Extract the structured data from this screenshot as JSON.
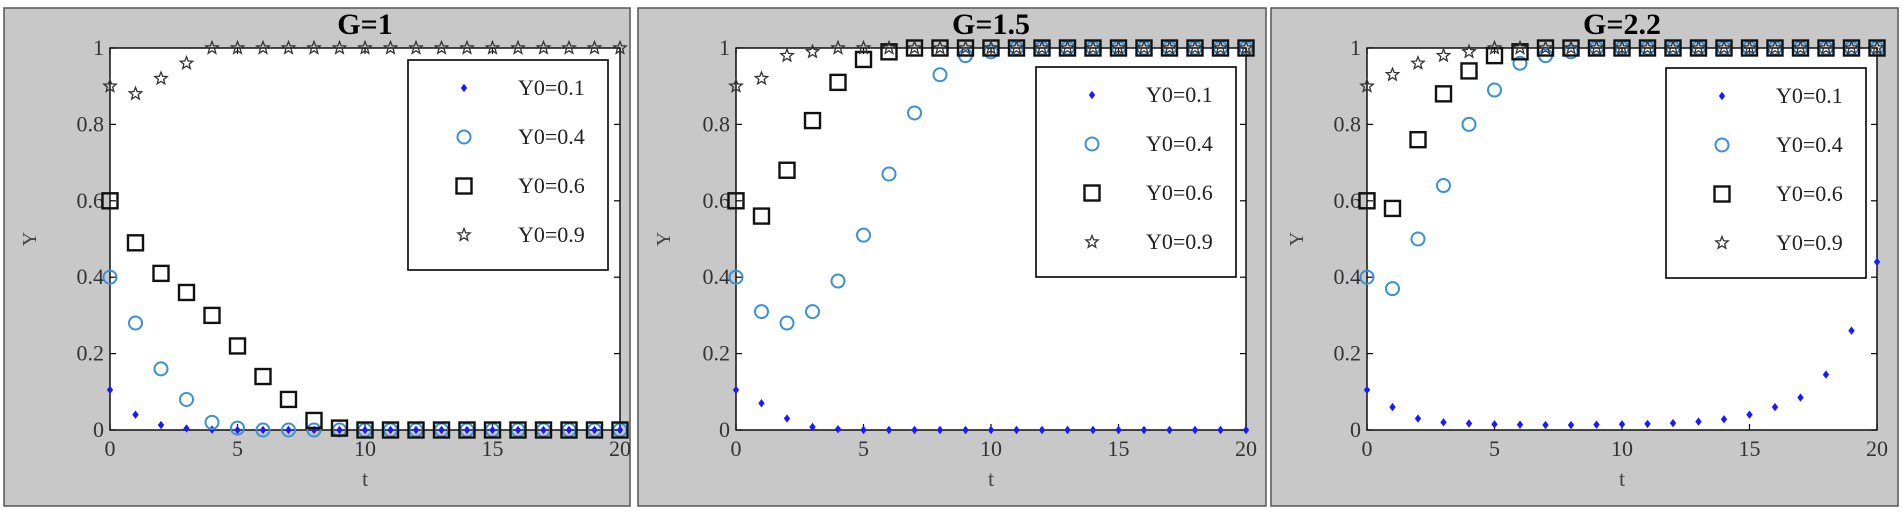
{
  "chart_data": [
    {
      "type": "scatter",
      "title": "G=1",
      "xlabel": "t",
      "ylabel": "Y",
      "xlim": [
        0,
        20
      ],
      "ylim": [
        0,
        1
      ],
      "xticks": [
        "0",
        "5",
        "10",
        "15",
        "20"
      ],
      "yticks": [
        "0",
        "0.2",
        "0.4",
        "0.6",
        "0.8",
        "1"
      ],
      "grid": false,
      "legend_position": "top-right",
      "x": [
        0,
        1,
        2,
        3,
        4,
        5,
        6,
        7,
        8,
        9,
        10,
        11,
        12,
        13,
        14,
        15,
        16,
        17,
        18,
        19,
        20
      ],
      "series": [
        {
          "name": "Y0=0.1",
          "marker": "dot",
          "color": "#1a1aff",
          "values": [
            0.105,
            0.04,
            0.013,
            0.004,
            0.001,
            0,
            0,
            0,
            0,
            0,
            0,
            0,
            0,
            0,
            0,
            0,
            0,
            0,
            0,
            0,
            0
          ]
        },
        {
          "name": "Y0=0.4",
          "marker": "circle",
          "color": "#3a8fd6",
          "values": [
            0.4,
            0.28,
            0.16,
            0.08,
            0.02,
            0.005,
            0,
            0,
            0,
            0,
            0,
            0,
            0,
            0,
            0,
            0,
            0,
            0,
            0,
            0,
            0
          ]
        },
        {
          "name": "Y0=0.6",
          "marker": "square",
          "color": "#111111",
          "values": [
            0.6,
            0.49,
            0.41,
            0.36,
            0.3,
            0.22,
            0.14,
            0.08,
            0.025,
            0.005,
            0,
            0,
            0,
            0,
            0,
            0,
            0,
            0,
            0,
            0,
            0
          ]
        },
        {
          "name": "Y0=0.9",
          "marker": "star",
          "color": "#333333",
          "values": [
            0.9,
            0.88,
            0.92,
            0.96,
            1,
            1,
            1,
            1,
            1,
            1,
            1,
            1,
            1,
            1,
            1,
            1,
            1,
            1,
            1,
            1,
            1
          ]
        }
      ]
    },
    {
      "type": "scatter",
      "title": "G=1.5",
      "xlabel": "t",
      "ylabel": "Y",
      "xlim": [
        0,
        20
      ],
      "ylim": [
        0,
        1
      ],
      "xticks": [
        "0",
        "5",
        "10",
        "15",
        "20"
      ],
      "yticks": [
        "0",
        "0.2",
        "0.4",
        "0.6",
        "0.8",
        "1"
      ],
      "grid": false,
      "legend_position": "top-right",
      "x": [
        0,
        1,
        2,
        3,
        4,
        5,
        6,
        7,
        8,
        9,
        10,
        11,
        12,
        13,
        14,
        15,
        16,
        17,
        18,
        19,
        20
      ],
      "series": [
        {
          "name": "Y0=0.1",
          "marker": "dot",
          "color": "#1a1aff",
          "values": [
            0.105,
            0.07,
            0.03,
            0.008,
            0.002,
            0,
            0,
            0,
            0,
            0,
            0,
            0,
            0,
            0,
            0,
            0,
            0,
            0,
            0,
            0,
            0
          ]
        },
        {
          "name": "Y0=0.4",
          "marker": "circle",
          "color": "#3a8fd6",
          "values": [
            0.4,
            0.31,
            0.28,
            0.31,
            0.39,
            0.51,
            0.67,
            0.83,
            0.93,
            0.98,
            0.99,
            1,
            1,
            1,
            1,
            1,
            1,
            1,
            1,
            1,
            1
          ]
        },
        {
          "name": "Y0=0.6",
          "marker": "square",
          "color": "#111111",
          "values": [
            0.6,
            0.56,
            0.68,
            0.81,
            0.91,
            0.97,
            0.99,
            1,
            1,
            1,
            1,
            1,
            1,
            1,
            1,
            1,
            1,
            1,
            1,
            1,
            1
          ]
        },
        {
          "name": "Y0=0.9",
          "marker": "star",
          "color": "#333333",
          "values": [
            0.9,
            0.92,
            0.98,
            0.99,
            1,
            1,
            1,
            1,
            1,
            1,
            1,
            1,
            1,
            1,
            1,
            1,
            1,
            1,
            1,
            1,
            1
          ]
        }
      ]
    },
    {
      "type": "scatter",
      "title": "G=2.2",
      "xlabel": "t",
      "ylabel": "Y",
      "xlim": [
        0,
        20
      ],
      "ylim": [
        0,
        1
      ],
      "xticks": [
        "0",
        "5",
        "10",
        "15",
        "20"
      ],
      "yticks": [
        "0",
        "0.2",
        "0.4",
        "0.6",
        "0.8",
        "1"
      ],
      "grid": false,
      "legend_position": "top-right",
      "x": [
        0,
        1,
        2,
        3,
        4,
        5,
        6,
        7,
        8,
        9,
        10,
        11,
        12,
        13,
        14,
        15,
        16,
        17,
        18,
        19,
        20
      ],
      "series": [
        {
          "name": "Y0=0.1",
          "marker": "dot",
          "color": "#1a1aff",
          "values": [
            0.105,
            0.06,
            0.03,
            0.02,
            0.017,
            0.015,
            0.014,
            0.013,
            0.013,
            0.014,
            0.015,
            0.016,
            0.018,
            0.022,
            0.028,
            0.04,
            0.06,
            0.085,
            0.145,
            0.26,
            0.44
          ]
        },
        {
          "name": "Y0=0.4",
          "marker": "circle",
          "color": "#3a8fd6",
          "values": [
            0.4,
            0.37,
            0.5,
            0.64,
            0.8,
            0.89,
            0.96,
            0.98,
            0.99,
            1,
            1,
            1,
            1,
            1,
            1,
            1,
            1,
            1,
            1,
            1,
            1
          ]
        },
        {
          "name": "Y0=0.6",
          "marker": "square",
          "color": "#111111",
          "values": [
            0.6,
            0.58,
            0.76,
            0.88,
            0.94,
            0.98,
            0.99,
            1,
            1,
            1,
            1,
            1,
            1,
            1,
            1,
            1,
            1,
            1,
            1,
            1,
            1
          ]
        },
        {
          "name": "Y0=0.9",
          "marker": "star",
          "color": "#333333",
          "values": [
            0.9,
            0.93,
            0.96,
            0.98,
            0.99,
            1,
            1,
            1,
            1,
            1,
            1,
            1,
            1,
            1,
            1,
            1,
            1,
            1,
            1,
            1,
            1
          ]
        }
      ]
    }
  ]
}
